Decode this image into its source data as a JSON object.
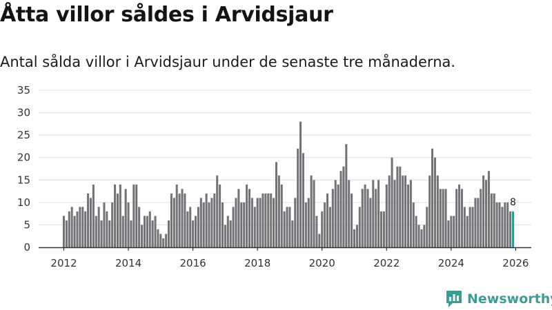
{
  "header": {
    "title": "Åtta villor såldes i Arvidsjaur",
    "subtitle": "Antal sålda villor i Arvidsjaur under de senaste tre månaderna."
  },
  "brand": {
    "name": "Newsworthy",
    "color": "#3a9e94"
  },
  "colors": {
    "bar": "#737277",
    "highlight": "#2a9d8f",
    "grid": "#dddddd",
    "axis": "#333333"
  },
  "chart_data": {
    "type": "bar",
    "title": "Åtta villor såldes i Arvidsjaur",
    "subtitle": "Antal sålda villor i Arvidsjaur under de senaste tre månaderna.",
    "xlabel": "",
    "ylabel": "",
    "grid": true,
    "ylim": [
      0,
      35
    ],
    "yticks": [
      0,
      5,
      10,
      15,
      20,
      25,
      30,
      35
    ],
    "xticks": [
      2012,
      2014,
      2016,
      2018,
      2020,
      2022,
      2024,
      2026
    ],
    "x_start": "2012-01",
    "x_end": "2026-01",
    "last_label": "8",
    "values": [
      7,
      6,
      8,
      9,
      7,
      8,
      9,
      9,
      8,
      12,
      11,
      14,
      7,
      9,
      6,
      10,
      8,
      6,
      10,
      14,
      12,
      14,
      7,
      13,
      10,
      6,
      14,
      14,
      9,
      5,
      7,
      7,
      8,
      6,
      7,
      4,
      3,
      2,
      3,
      6,
      12,
      11,
      14,
      12,
      13,
      12,
      8,
      9,
      6,
      7,
      9,
      11,
      10,
      12,
      10,
      11,
      12,
      16,
      14,
      10,
      5,
      7,
      6,
      9,
      11,
      13,
      10,
      10,
      14,
      13,
      11,
      9,
      11,
      11,
      12,
      12,
      12,
      12,
      11,
      19,
      16,
      14,
      8,
      9,
      9,
      6,
      11,
      22,
      28,
      21,
      10,
      11,
      16,
      15,
      7,
      3,
      8,
      10,
      12,
      9,
      13,
      15,
      14,
      17,
      18,
      23,
      15,
      12,
      4,
      5,
      9,
      13,
      14,
      13,
      11,
      15,
      13,
      15,
      8,
      8,
      14,
      16,
      20,
      15,
      18,
      18,
      16,
      16,
      14,
      15,
      10,
      7,
      5,
      4,
      5,
      9,
      16,
      22,
      20,
      16,
      13,
      13,
      13,
      6,
      7,
      7,
      13,
      14,
      13,
      9,
      7,
      9,
      9,
      11,
      11,
      13,
      16,
      15,
      17,
      12,
      12,
      10,
      10,
      9,
      10,
      10,
      8,
      8
    ]
  }
}
